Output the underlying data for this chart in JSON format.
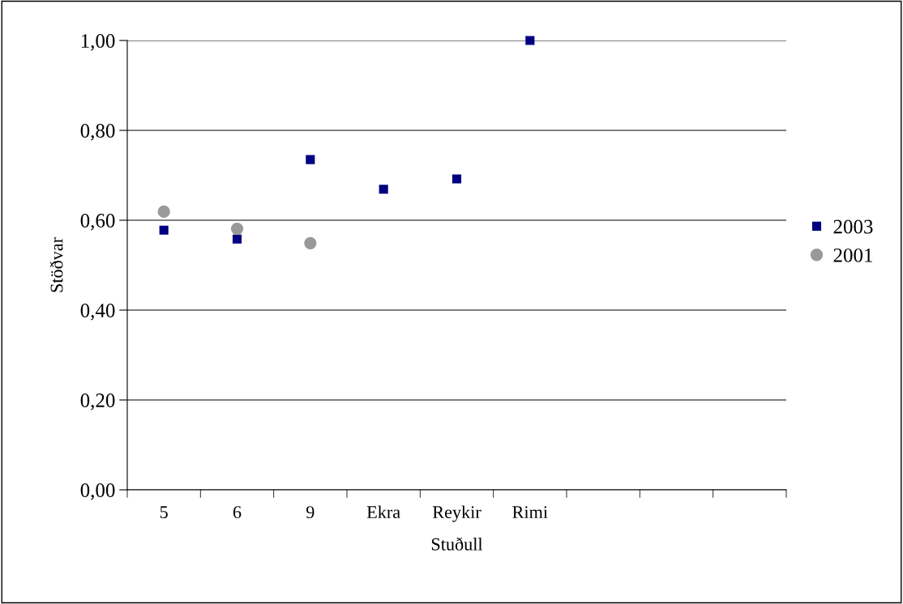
{
  "chart_data": {
    "type": "scatter",
    "xlabel": "Stuðull",
    "ylabel": "Stöðvar",
    "categories": [
      "5",
      "6",
      "9",
      "Ekra",
      "Reykir",
      "Rimi",
      null,
      null,
      null
    ],
    "series": [
      {
        "name": "2003",
        "color": "#000080",
        "marker": "square",
        "values": [
          0.578,
          0.558,
          0.735,
          0.669,
          0.692,
          1.0,
          null,
          null,
          null
        ]
      },
      {
        "name": "2001",
        "color": "#999999",
        "marker": "circle",
        "values": [
          0.619,
          0.581,
          0.549,
          null,
          null,
          null,
          null,
          null,
          null
        ]
      }
    ],
    "ylim": [
      0,
      1.0
    ],
    "yticks": [
      {
        "value": 0,
        "label": "0,00"
      },
      {
        "value": 0.2,
        "label": "0,20"
      },
      {
        "value": 0.4,
        "label": "0,40"
      },
      {
        "value": 0.6,
        "label": "0,60"
      },
      {
        "value": 0.8,
        "label": "0,80"
      },
      {
        "value": 1.0,
        "label": "1,00"
      }
    ],
    "grid": "y",
    "legend": "right"
  }
}
